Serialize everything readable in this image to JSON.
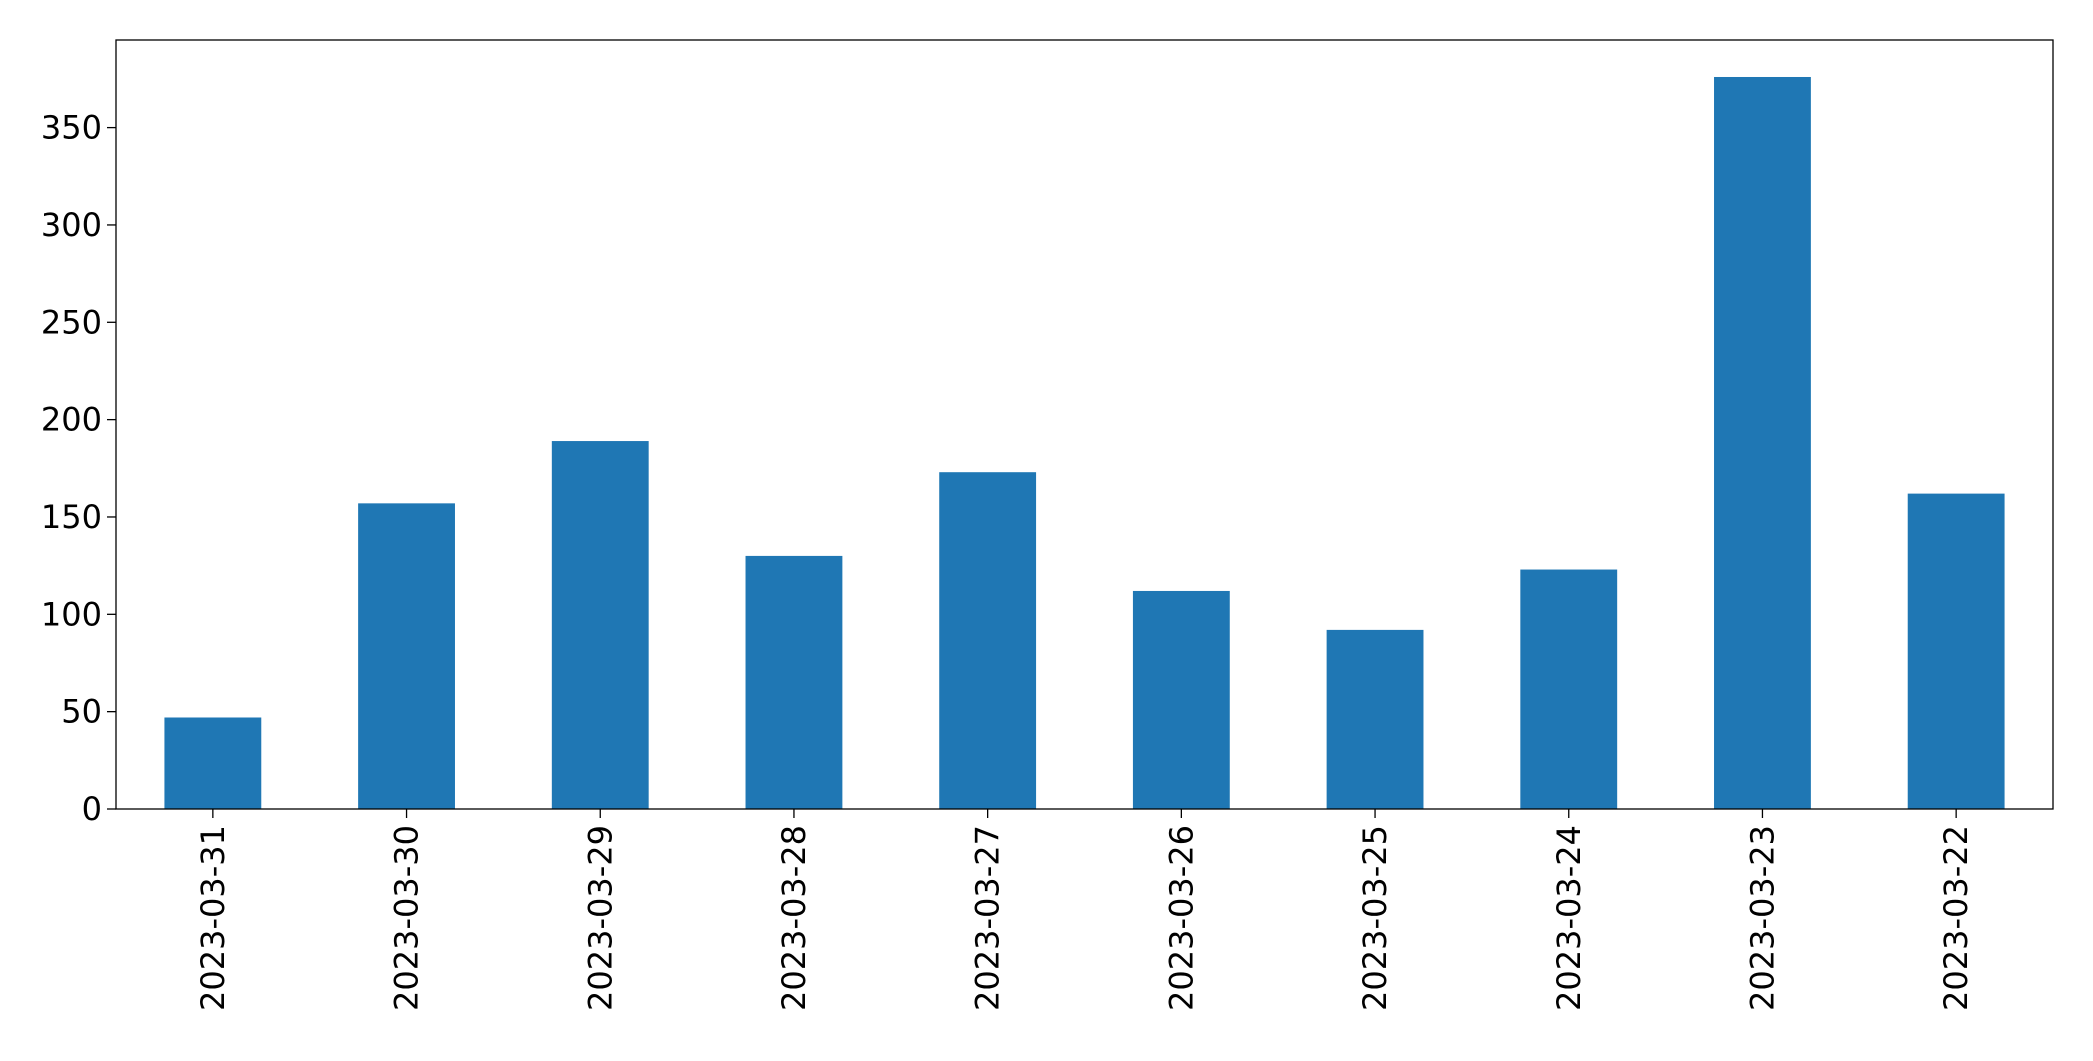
{
  "chart_data": {
    "type": "bar",
    "categories": [
      "2023-03-31",
      "2023-03-30",
      "2023-03-29",
      "2023-03-28",
      "2023-03-27",
      "2023-03-26",
      "2023-03-25",
      "2023-03-24",
      "2023-03-23",
      "2023-03-22"
    ],
    "values": [
      47,
      157,
      189,
      130,
      173,
      112,
      92,
      123,
      376,
      162
    ],
    "color": "#1f77b4",
    "ylim": [
      0,
      395
    ],
    "yticks": [
      0,
      50,
      100,
      150,
      200,
      250,
      300,
      350
    ],
    "grid": false
  }
}
